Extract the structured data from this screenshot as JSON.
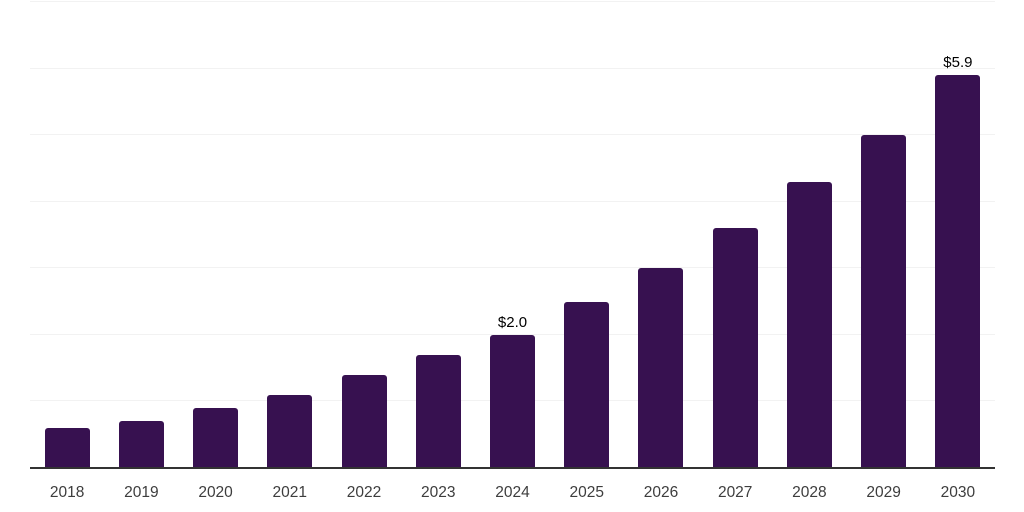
{
  "chart_data": {
    "type": "bar",
    "title": "",
    "xlabel": "",
    "ylabel": "",
    "categories": [
      "2018",
      "2019",
      "2020",
      "2021",
      "2022",
      "2023",
      "2024",
      "2025",
      "2026",
      "2027",
      "2028",
      "2029",
      "2030"
    ],
    "values": [
      0.6,
      0.7,
      0.9,
      1.1,
      1.4,
      1.7,
      2.0,
      2.5,
      3.0,
      3.6,
      4.3,
      5.0,
      5.9
    ],
    "data_labels": [
      "",
      "",
      "",
      "",
      "",
      "",
      "$2.0",
      "",
      "",
      "",
      "",
      "",
      "$5.9"
    ],
    "ylim": [
      0,
      7
    ],
    "y_gridline_step": 1,
    "grid": "horizontal",
    "legend": "none",
    "y_axis_labels_visible": false
  },
  "style": {
    "bar_color": "#371150",
    "gridline_color": "#f2f2f2",
    "axis_line_color": "#333333",
    "x_label_color": "#3d3d3d",
    "data_label_color": "#000000",
    "background_color": "#ffffff"
  }
}
